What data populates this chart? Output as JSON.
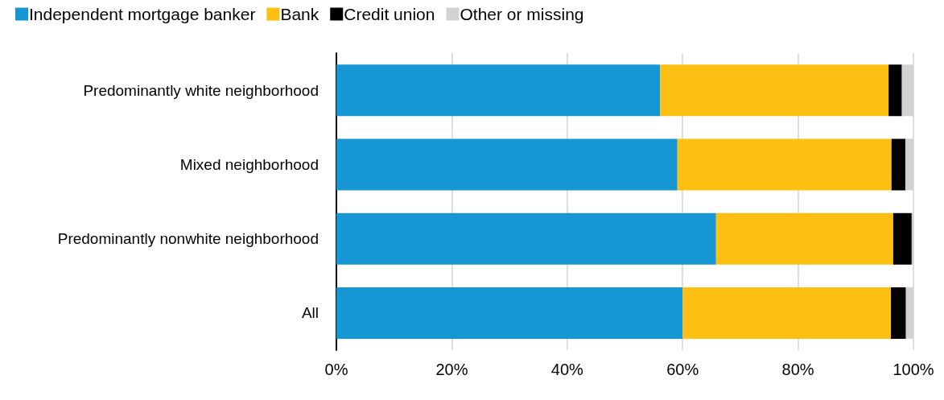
{
  "chart_data": {
    "type": "bar",
    "orientation": "horizontal",
    "stacked": true,
    "categories": [
      "Predominantly white neighborhood",
      "Mixed neighborhood",
      "Predominantly nonwhite neighborhood",
      "All"
    ],
    "series": [
      {
        "name": "Independent mortgage banker",
        "color": "#1696d2",
        "values": [
          56.1,
          59.1,
          65.8,
          60.0
        ]
      },
      {
        "name": "Bank",
        "color": "#fdbf11",
        "values": [
          39.6,
          37.1,
          30.7,
          36.1
        ]
      },
      {
        "name": "Credit union",
        "color": "#000000",
        "values": [
          2.3,
          2.4,
          3.2,
          2.6
        ]
      },
      {
        "name": "Other or missing",
        "color": "#d2d2d2",
        "values": [
          2.0,
          1.4,
          0.3,
          1.3
        ]
      }
    ],
    "xlim": [
      0,
      100
    ],
    "xticks": [
      {
        "value": 0,
        "label": "0%"
      },
      {
        "value": 20,
        "label": "20%"
      },
      {
        "value": 40,
        "label": "40%"
      },
      {
        "value": 60,
        "label": "60%"
      },
      {
        "value": 80,
        "label": "80%"
      },
      {
        "value": 100,
        "label": "100%"
      }
    ],
    "grid": "x",
    "legend": "top left"
  }
}
